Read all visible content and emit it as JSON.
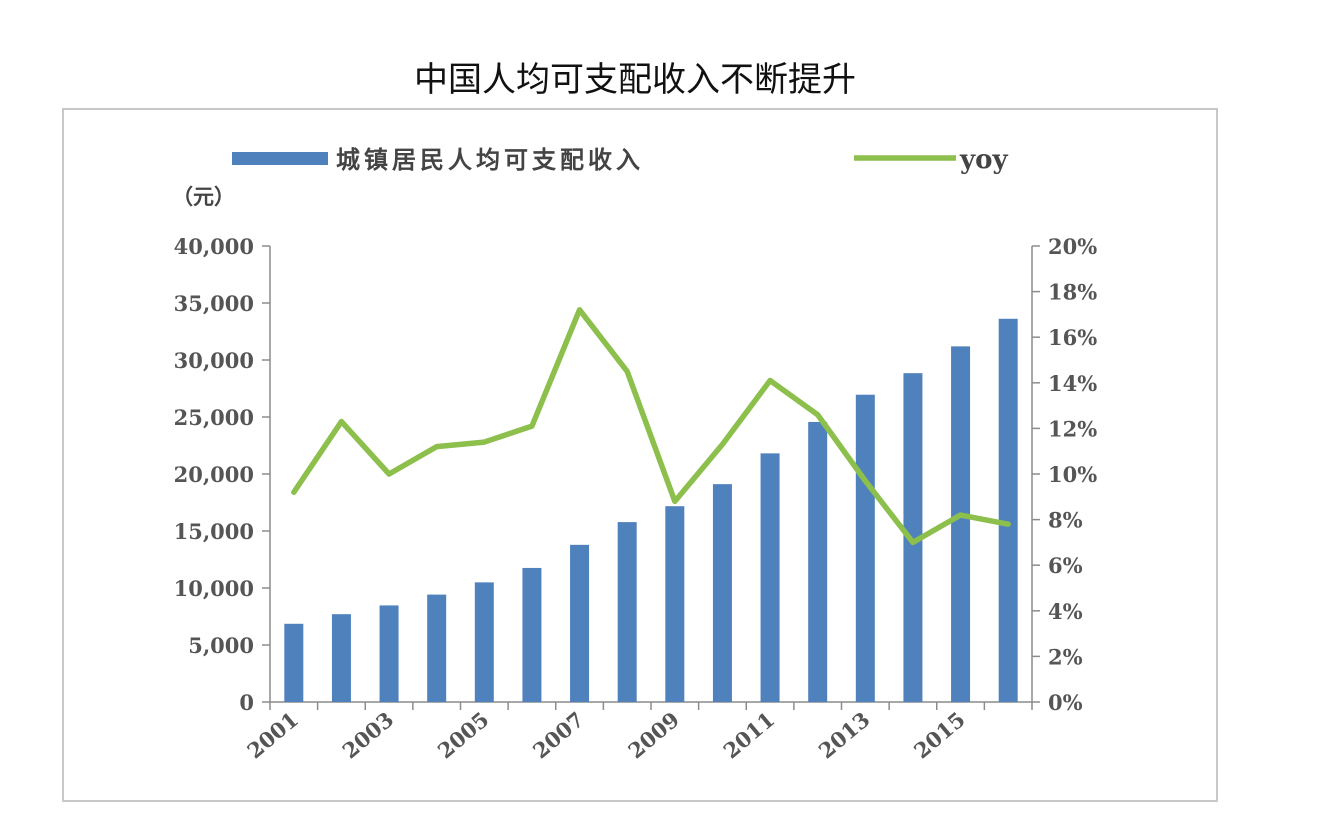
{
  "title": "中国人均可支配收入不断提升",
  "chart_data": {
    "type": "bar",
    "title": "中国人均可支配收入不断提升",
    "y_unit_label": "（元）",
    "x": [
      "2001",
      "2002",
      "2003",
      "2004",
      "2005",
      "2006",
      "2007",
      "2008",
      "2009",
      "2010",
      "2011",
      "2012",
      "2013",
      "2014",
      "2015",
      "2016"
    ],
    "x_tick_labels": [
      "2001",
      "2003",
      "2005",
      "2007",
      "2009",
      "2011",
      "2013",
      "2015"
    ],
    "series": [
      {
        "name": "城镇居民人均可支配收入",
        "type": "bar",
        "axis": "left",
        "color": "#4f81bd",
        "values": [
          6860,
          7703,
          8472,
          9422,
          10493,
          11759,
          13786,
          15781,
          17175,
          19109,
          21810,
          24565,
          26955,
          28844,
          31195,
          33616
        ]
      },
      {
        "name": "yoy",
        "type": "line",
        "axis": "right",
        "color": "#8cbf4b",
        "values": [
          9.2,
          12.3,
          10.0,
          11.2,
          11.4,
          12.1,
          17.2,
          14.5,
          8.8,
          11.3,
          14.1,
          12.6,
          9.7,
          7.0,
          8.2,
          7.8
        ]
      }
    ],
    "y_left": {
      "lim": [
        0,
        40000
      ],
      "ticks": [
        "0",
        "5,000",
        "10,000",
        "15,000",
        "20,000",
        "25,000",
        "30,000",
        "35,000",
        "40,000"
      ]
    },
    "y_right": {
      "lim": [
        0,
        20
      ],
      "ticks": [
        "0%",
        "2%",
        "4%",
        "6%",
        "8%",
        "10%",
        "12%",
        "14%",
        "16%",
        "18%",
        "20%"
      ]
    },
    "legend": {
      "position": "top"
    },
    "grid": false
  }
}
